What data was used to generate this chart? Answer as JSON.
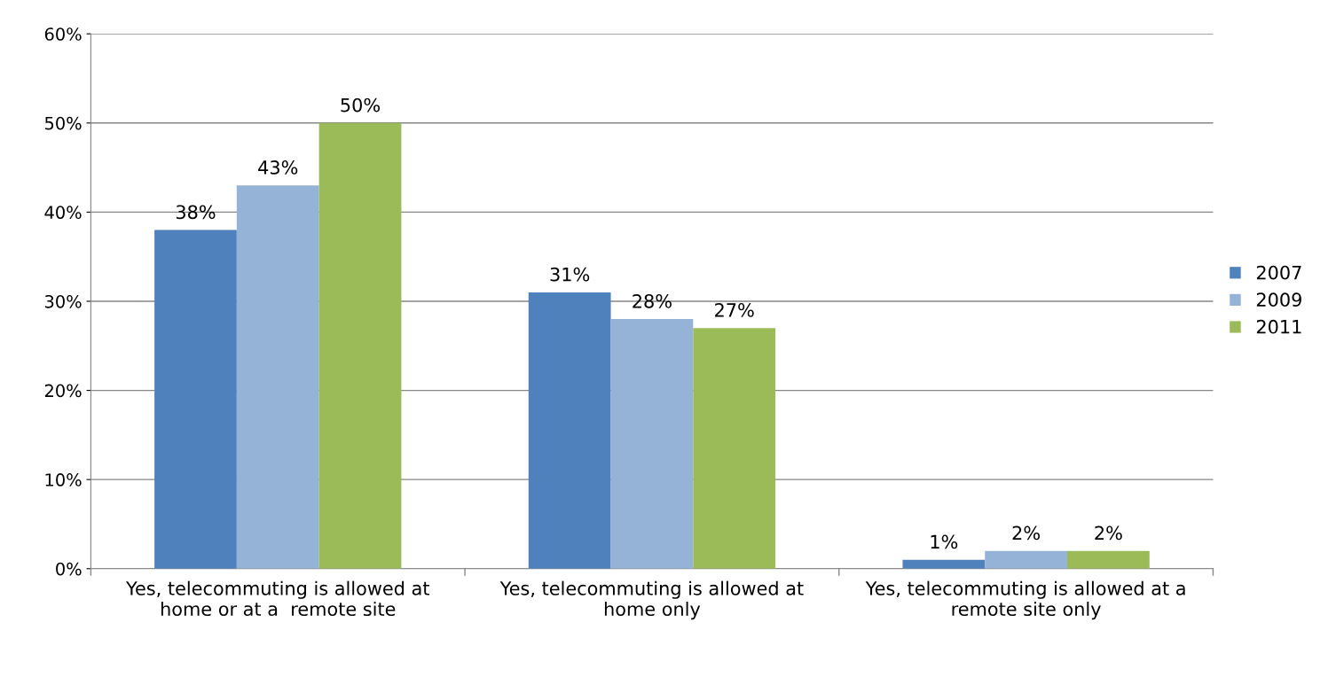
{
  "chart_data": {
    "type": "bar",
    "categories": [
      "Yes, telecommuting is allowed at\nhome or at a  remote site",
      "Yes, telecommuting is allowed at\nhome only",
      "Yes, telecommuting is allowed at a\nremote site only"
    ],
    "series": [
      {
        "name": "2007",
        "color": "#4f81bd",
        "values": [
          38,
          31,
          1
        ],
        "value_labels": [
          "38%",
          "31%",
          "1%"
        ]
      },
      {
        "name": "2009",
        "color": "#95b3d7",
        "values": [
          43,
          28,
          2
        ],
        "value_labels": [
          "43%",
          "28%",
          "2%"
        ]
      },
      {
        "name": "2011",
        "color": "#9bbb59",
        "values": [
          50,
          27,
          2
        ],
        "value_labels": [
          "50%",
          "27%",
          "2%"
        ]
      }
    ],
    "ylim": [
      0,
      60
    ],
    "yticks": [
      {
        "value": 0,
        "label": "0%"
      },
      {
        "value": 10,
        "label": "10%"
      },
      {
        "value": 20,
        "label": "20%"
      },
      {
        "value": 30,
        "label": "30%"
      },
      {
        "value": 40,
        "label": "40%"
      },
      {
        "value": 50,
        "label": "50%"
      },
      {
        "value": 60,
        "label": "60%"
      }
    ],
    "grid": "y",
    "legend": "right"
  }
}
